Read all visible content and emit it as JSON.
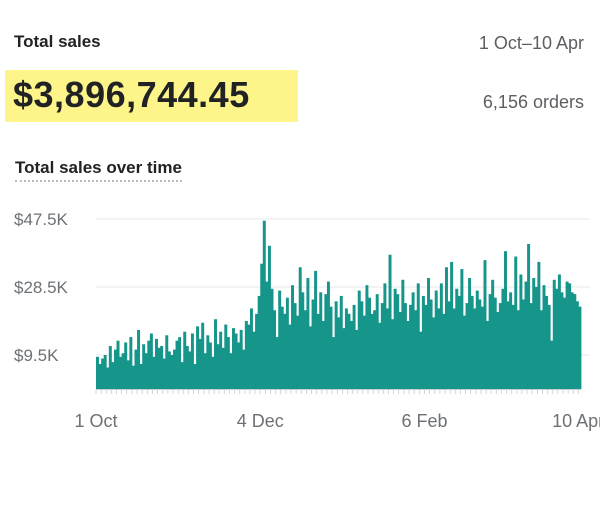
{
  "header": {
    "title": "Total sales",
    "date_range": "1 Oct–10 Apr",
    "total": "$3,896,744.45",
    "orders": "6,156 orders"
  },
  "chart": {
    "title": "Total sales over time"
  },
  "colors": {
    "bar": "#16958a",
    "highlight": "#fdf48a",
    "grid": "#e6e7e8"
  },
  "chart_data": {
    "type": "bar",
    "title": "Total sales over time",
    "xlabel": "",
    "ylabel": "",
    "ylim": [
      0,
      50000
    ],
    "y_ticks": [
      {
        "value": 9500,
        "label": "$9.5K"
      },
      {
        "value": 28500,
        "label": "$28.5K"
      },
      {
        "value": 47500,
        "label": "$47.5K"
      }
    ],
    "x_ticks": [
      {
        "index": 0,
        "label": "1 Oct"
      },
      {
        "index": 64,
        "label": "4 Dec"
      },
      {
        "index": 128,
        "label": "6 Feb"
      },
      {
        "index": 191,
        "label": "10 Apr"
      }
    ],
    "grid": true,
    "values": [
      9000,
      7000,
      8500,
      9500,
      6000,
      12000,
      7500,
      11000,
      13500,
      9000,
      10000,
      13000,
      8000,
      14500,
      6500,
      11000,
      16500,
      7000,
      12500,
      10000,
      13500,
      15500,
      9000,
      14000,
      11500,
      12000,
      8500,
      15000,
      10500,
      9500,
      11000,
      13500,
      14500,
      7500,
      16000,
      12000,
      10500,
      15500,
      7000,
      17500,
      14000,
      18500,
      10000,
      15000,
      13000,
      9000,
      19500,
      12500,
      16000,
      11500,
      18000,
      14500,
      10000,
      17000,
      15500,
      13000,
      16500,
      11000,
      19000,
      18000,
      22500,
      16000,
      21000,
      26000,
      35000,
      47000,
      30000,
      40000,
      28000,
      22000,
      14500,
      27500,
      23000,
      21000,
      25500,
      18000,
      29000,
      24000,
      20500,
      34000,
      27000,
      22000,
      31000,
      17500,
      25000,
      33000,
      21000,
      27000,
      19000,
      26500,
      30000,
      23000,
      14500,
      24500,
      20000,
      26000,
      17000,
      22500,
      21000,
      19000,
      23500,
      16500,
      27500,
      24500,
      20500,
      29000,
      25500,
      21000,
      22000,
      26500,
      18500,
      24000,
      29500,
      22500,
      37500,
      19500,
      28000,
      26500,
      21500,
      30500,
      24000,
      19000,
      23500,
      27000,
      22000,
      29500,
      16000,
      26000,
      23500,
      31000,
      25000,
      20000,
      27500,
      22500,
      29500,
      21000,
      34000,
      24500,
      35500,
      22500,
      28000,
      26000,
      33500,
      20500,
      24000,
      31000,
      26000,
      22500,
      27500,
      25000,
      23000,
      36000,
      19000,
      26500,
      30500,
      25500,
      21500,
      24000,
      28000,
      38500,
      24500,
      27000,
      23500,
      37000,
      22000,
      32000,
      25000,
      30000,
      40500,
      24000,
      31000,
      28500,
      35500,
      22000,
      29000,
      26000,
      23500,
      13500,
      30500,
      28000,
      32000,
      27000,
      25500,
      30000,
      29500,
      27000,
      26500,
      24500,
      23000
    ]
  }
}
